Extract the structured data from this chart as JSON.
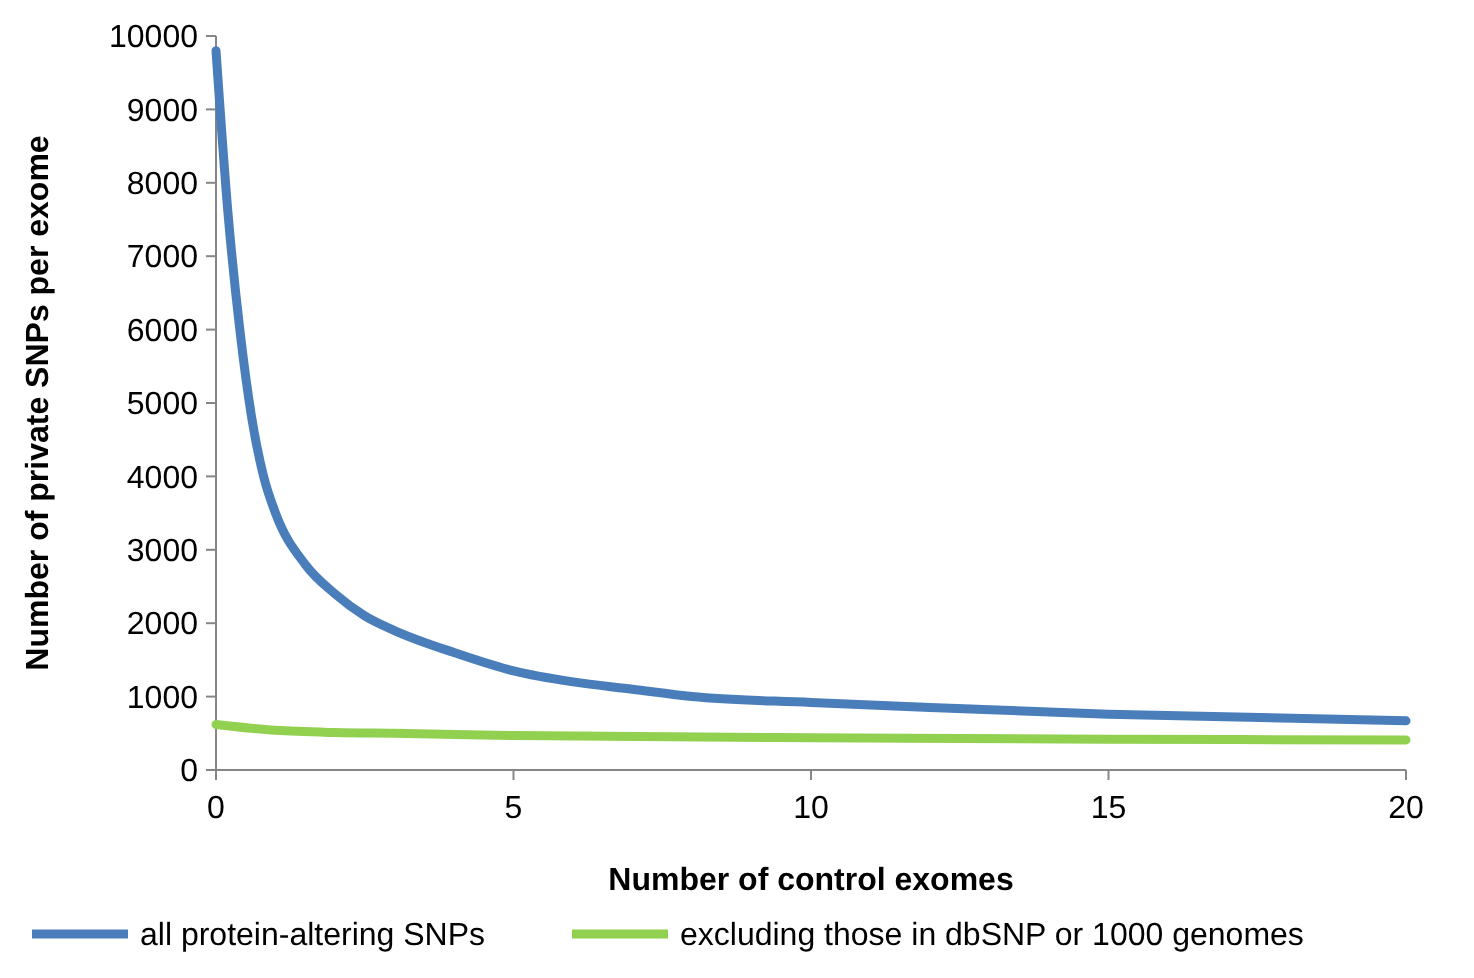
{
  "chart_data": {
    "type": "line",
    "xlabel": "Number of control exomes",
    "ylabel": "Number of private SNPs per exome",
    "xlim": [
      0,
      20
    ],
    "xticks": [
      0,
      5,
      10,
      15,
      20
    ],
    "ylim": [
      0,
      10000
    ],
    "yticks": [
      0,
      1000,
      2000,
      3000,
      4000,
      5000,
      6000,
      7000,
      8000,
      9000,
      10000
    ],
    "grid": false,
    "legend": "bottom",
    "line_style": "solid",
    "series": [
      {
        "name": "all protein-altering SNPs",
        "color": "#4a7ebb",
        "x": [
          0,
          0.2,
          0.4,
          0.6,
          0.8,
          1,
          1.5,
          2,
          2.5,
          3,
          4,
          5,
          6,
          7,
          8,
          10,
          12,
          15,
          20
        ],
        "values": [
          9800,
          7600,
          6000,
          4800,
          4000,
          3500,
          2800,
          2400,
          2100,
          1900,
          1600,
          1350,
          1200,
          1100,
          1000,
          920,
          850,
          760,
          670
        ]
      },
      {
        "name": "excluding those in dbSNP or 1000 genomes",
        "color": "#92d050",
        "x": [
          0,
          1,
          2,
          3,
          5,
          10,
          15,
          20
        ],
        "values": [
          620,
          540,
          510,
          500,
          470,
          440,
          420,
          410
        ]
      }
    ]
  }
}
